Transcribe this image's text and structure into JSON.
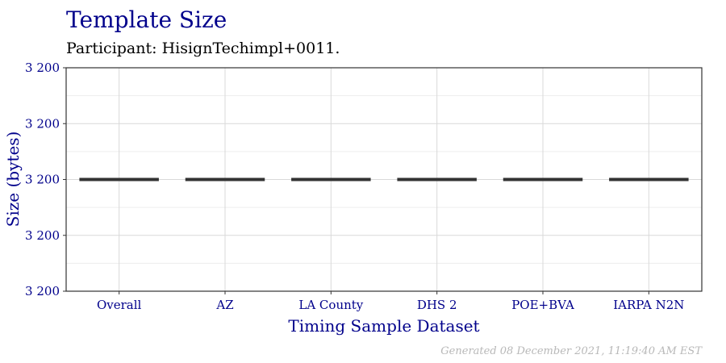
{
  "chart_data": {
    "type": "box",
    "title": "Template Size",
    "subtitle": "Participant: HisignTechimpl+0011.",
    "xlabel": "Timing Sample Dataset",
    "ylabel": "Size (bytes)",
    "categories": [
      "Overall",
      "AZ",
      "LA County",
      "DHS 2",
      "POE+BVA",
      "IARPA N2N"
    ],
    "values": [
      3200,
      3200,
      3200,
      3200,
      3200,
      3200
    ],
    "y_tick_labels": [
      "3 200",
      "3 200",
      "3 200",
      "3 200",
      "3 200"
    ],
    "grid": true,
    "caption": "Generated 08 December 2021, 11:19:40 AM EST",
    "colors": {
      "text_accent": "#00008B",
      "box": "#333333",
      "grid_major": "#d9d9d9",
      "grid_minor": "#ededed",
      "caption": "#b8b8b8"
    }
  }
}
